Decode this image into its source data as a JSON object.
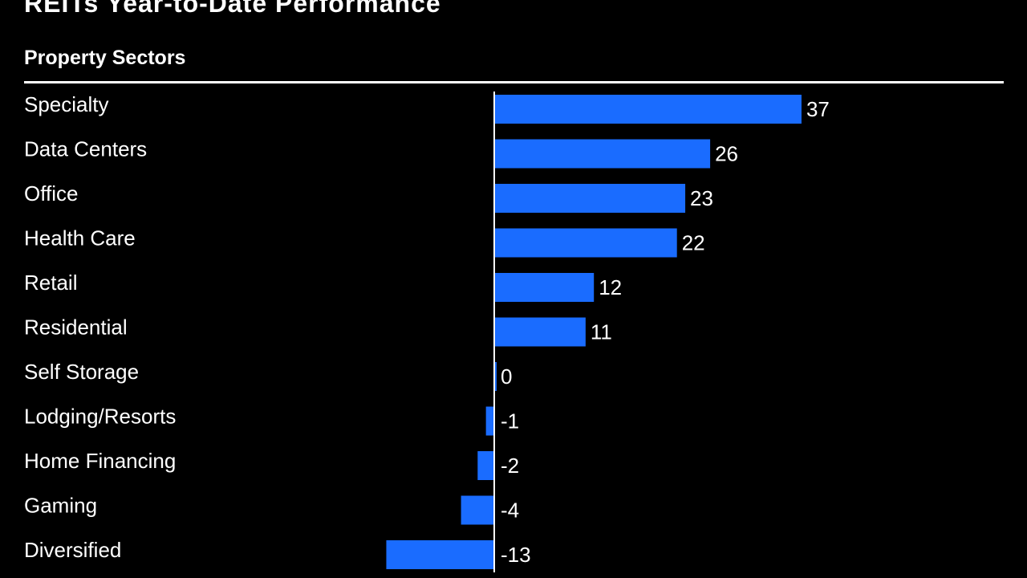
{
  "header": {
    "title": "REITs Year-to-Date Performance",
    "subtitle": "Property Sectors"
  },
  "colors": {
    "background": "#000000",
    "bar": "#1a6cff",
    "text": "#ffffff",
    "axis": "#ffffff"
  },
  "chart_data": {
    "type": "bar",
    "orientation": "horizontal",
    "title": "REITs Year-to-Date Performance",
    "subtitle": "Property Sectors",
    "categories": [
      "Specialty",
      "Data Centers",
      "Office",
      "Health Care",
      "Retail",
      "Residential",
      "Self Storage",
      "Lodging/Resorts",
      "Home Financing",
      "Gaming",
      "Diversified"
    ],
    "values": [
      37,
      26,
      23,
      22,
      12,
      11,
      0,
      -1,
      -2,
      -4,
      -13
    ],
    "data_labels": [
      "37",
      "26",
      "23",
      "22",
      "12",
      "11",
      "0",
      "-1",
      "-2",
      "-4",
      "-13"
    ],
    "xlim": [
      -13,
      37
    ],
    "grid": false,
    "legend": "none"
  }
}
